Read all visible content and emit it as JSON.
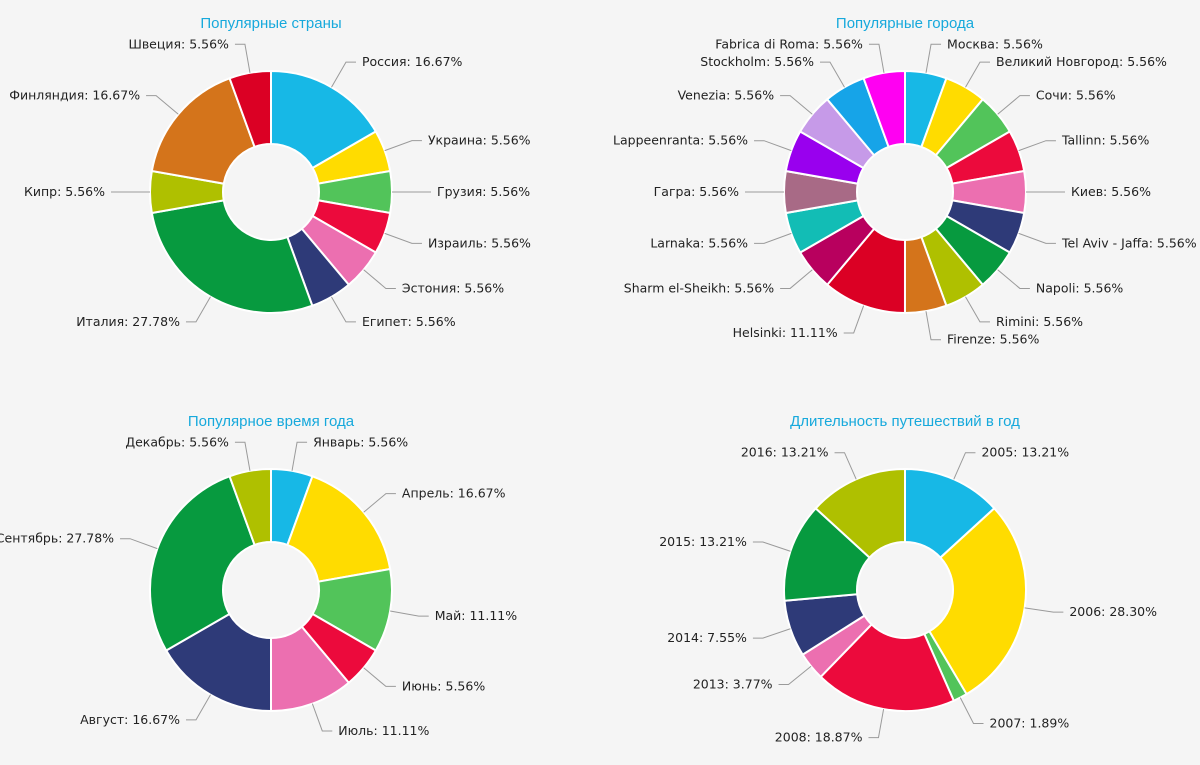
{
  "chart_data": [
    {
      "type": "pie",
      "title": "Популярные страны",
      "slices": [
        {
          "label": "Россия",
          "value": 16.67,
          "text": "Россия: 16.67%",
          "color": "#17b8e6"
        },
        {
          "label": "Украина",
          "value": 5.56,
          "text": "Украина: 5.56%",
          "color": "#ffdc00"
        },
        {
          "label": "Грузия",
          "value": 5.56,
          "text": "Грузия: 5.56%",
          "color": "#52c45a"
        },
        {
          "label": "Израиль",
          "value": 5.56,
          "text": "Израиль: 5.56%",
          "color": "#ec0a3c"
        },
        {
          "label": "Эстония",
          "value": 5.56,
          "text": "Эстония: 5.56%",
          "color": "#ec6fb0"
        },
        {
          "label": "Египет",
          "value": 5.56,
          "text": "Египет: 5.56%",
          "color": "#2e3a78"
        },
        {
          "label": "Италия",
          "value": 27.78,
          "text": "Италия: 27.78%",
          "color": "#079a3f"
        },
        {
          "label": "Кипр",
          "value": 5.56,
          "text": "Кипр: 5.56%",
          "color": "#afc000"
        },
        {
          "label": "Финляндия",
          "value": 16.67,
          "text": "Финляндия: 16.67%",
          "color": "#d4741b"
        },
        {
          "label": "Швеция",
          "value": 5.56,
          "text": "Швеция: 5.56%",
          "color": "#db0024"
        }
      ]
    },
    {
      "type": "pie",
      "title": "Популярные города",
      "slices": [
        {
          "label": "Москва",
          "value": 5.56,
          "text": "Москва: 5.56%",
          "color": "#17b8e6"
        },
        {
          "label": "Великий Новгород",
          "value": 5.56,
          "text": "Великий Новгород: 5.56%",
          "color": "#ffdc00"
        },
        {
          "label": "Сочи",
          "value": 5.56,
          "text": "Сочи: 5.56%",
          "color": "#52c45a"
        },
        {
          "label": "Tallinn",
          "value": 5.56,
          "text": "Tallinn: 5.56%",
          "color": "#ec0a3c"
        },
        {
          "label": "Киев",
          "value": 5.56,
          "text": "Киев: 5.56%",
          "color": "#ec6fb0"
        },
        {
          "label": "Tel Aviv - Jaffa",
          "value": 5.56,
          "text": "Tel Aviv - Jaffa: 5.56%",
          "color": "#2e3a78"
        },
        {
          "label": "Napoli",
          "value": 5.56,
          "text": "Napoli: 5.56%",
          "color": "#079a3f"
        },
        {
          "label": "Rimini",
          "value": 5.56,
          "text": "Rimini: 5.56%",
          "color": "#afc000"
        },
        {
          "label": "Firenze",
          "value": 5.56,
          "text": "Firenze: 5.56%",
          "color": "#d4741b"
        },
        {
          "label": "Helsinki",
          "value": 11.11,
          "text": "Helsinki: 11.11%",
          "color": "#db0024"
        },
        {
          "label": "Sharm el-Sheikh",
          "value": 5.56,
          "text": "Sharm el-Sheikh: 5.56%",
          "color": "#b8005e"
        },
        {
          "label": "Larnaka",
          "value": 5.56,
          "text": "Larnaka: 5.56%",
          "color": "#12bdb5"
        },
        {
          "label": "Гагра",
          "value": 5.56,
          "text": "Гагра: 5.56%",
          "color": "#a86a86"
        },
        {
          "label": "Lappeenranta",
          "value": 5.56,
          "text": "Lappeenranta: 5.56%",
          "color": "#9900ee"
        },
        {
          "label": "Venezia",
          "value": 5.56,
          "text": "Venezia: 5.56%",
          "color": "#c69ae8"
        },
        {
          "label": "Stockholm",
          "value": 5.56,
          "text": "Stockholm: 5.56%",
          "color": "#16a4e8"
        },
        {
          "label": "Fabrica di Roma",
          "value": 5.56,
          "text": "Fabrica di Roma: 5.56%",
          "color": "#ff00f2"
        }
      ]
    },
    {
      "type": "pie",
      "title": "Популярное время года",
      "slices": [
        {
          "label": "Январь",
          "value": 5.56,
          "text": "Январь: 5.56%",
          "color": "#17b8e6"
        },
        {
          "label": "Апрель",
          "value": 16.67,
          "text": "Апрель: 16.67%",
          "color": "#ffdc00"
        },
        {
          "label": "Май",
          "value": 11.11,
          "text": "Май: 11.11%",
          "color": "#52c45a"
        },
        {
          "label": "Июнь",
          "value": 5.56,
          "text": "Июнь: 5.56%",
          "color": "#ec0a3c"
        },
        {
          "label": "Июль",
          "value": 11.11,
          "text": "Июль: 11.11%",
          "color": "#ec6fb0"
        },
        {
          "label": "Август",
          "value": 16.67,
          "text": "Август: 16.67%",
          "color": "#2e3a78"
        },
        {
          "label": "Сентябрь",
          "value": 27.78,
          "text": "Сентябрь: 27.78%",
          "color": "#079a3f"
        },
        {
          "label": "Декабрь",
          "value": 5.56,
          "text": "Декабрь: 5.56%",
          "color": "#afc000"
        }
      ]
    },
    {
      "type": "pie",
      "title": "Длительность путешествий в год",
      "slices": [
        {
          "label": "2005",
          "value": 13.21,
          "text": "2005: 13.21%",
          "color": "#17b8e6"
        },
        {
          "label": "2006",
          "value": 28.3,
          "text": "2006: 28.30%",
          "color": "#ffdc00"
        },
        {
          "label": "2007",
          "value": 1.89,
          "text": "2007: 1.89%",
          "color": "#52c45a"
        },
        {
          "label": "2008",
          "value": 18.87,
          "text": "2008: 18.87%",
          "color": "#ec0a3c"
        },
        {
          "label": "2013",
          "value": 3.77,
          "text": "2013: 3.77%",
          "color": "#ec6fb0"
        },
        {
          "label": "2014",
          "value": 7.55,
          "text": "2014: 7.55%",
          "color": "#2e3a78"
        },
        {
          "label": "2015",
          "value": 13.21,
          "text": "2015: 13.21%",
          "color": "#079a3f"
        },
        {
          "label": "2016",
          "value": 13.21,
          "text": "2016: 13.21%",
          "color": "#afc000"
        }
      ]
    }
  ]
}
